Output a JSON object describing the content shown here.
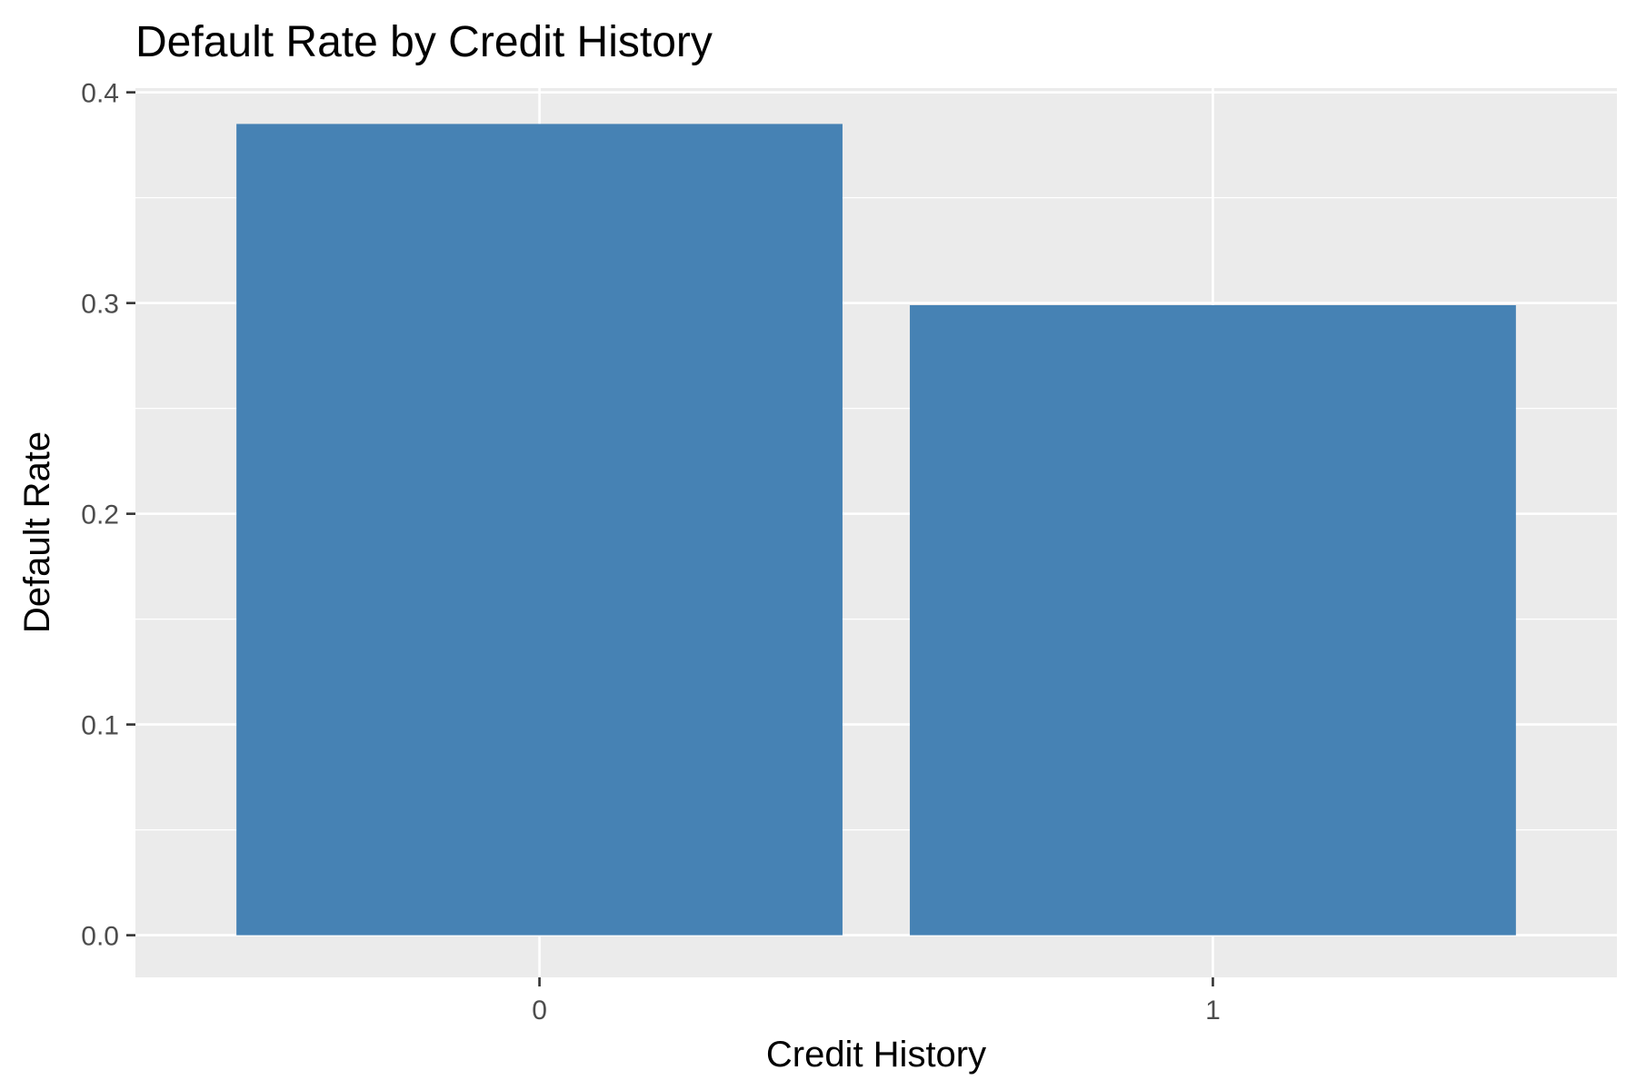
{
  "chart_data": {
    "type": "bar",
    "title": "Default Rate by Credit History",
    "xlabel": "Credit History",
    "ylabel": "Default Rate",
    "categories": [
      "0",
      "1"
    ],
    "values": [
      0.385,
      0.299
    ],
    "ylim": [
      -0.02,
      0.402
    ],
    "yticks": [
      "0.0",
      "0.1",
      "0.2",
      "0.3",
      "0.4"
    ],
    "grid": true,
    "legend": "none",
    "colors": {
      "bar": "#4682B4",
      "panel": "#EBEBEB",
      "grid": "#FFFFFF",
      "tick": "#333333",
      "tick_label": "#4D4D4D"
    }
  }
}
